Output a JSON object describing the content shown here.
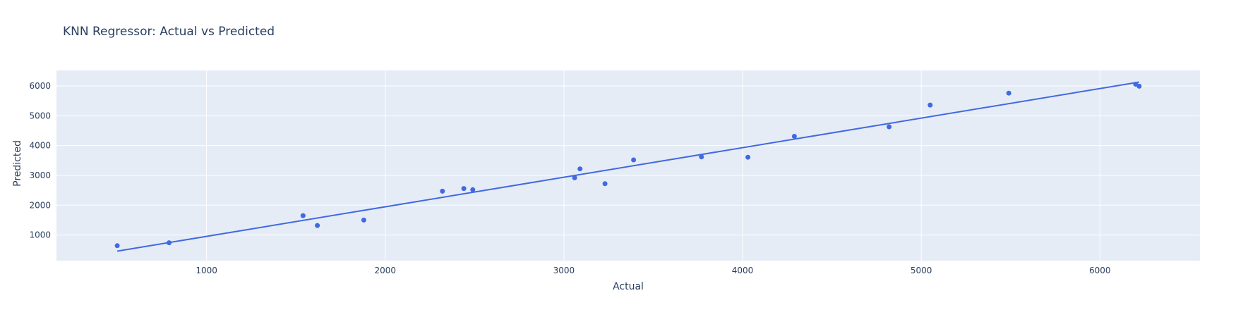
{
  "chart_data": {
    "type": "scatter",
    "title": "KNN Regressor: Actual vs Predicted",
    "xlabel": "Actual",
    "ylabel": "Predicted",
    "xlim": [
      160,
      6560
    ],
    "ylim": [
      140,
      6520
    ],
    "x_ticks": [
      1000,
      2000,
      3000,
      4000,
      5000,
      6000
    ],
    "y_ticks": [
      1000,
      2000,
      3000,
      4000,
      5000,
      6000
    ],
    "grid": true,
    "colors": {
      "marker": "#4169e1",
      "line": "#4169e1",
      "plot_bg": "#e5ecf6",
      "grid": "#ffffff",
      "text": "#2a3f5f"
    },
    "series": [
      {
        "mode": "markers",
        "points": [
          [
            500,
            640
          ],
          [
            790,
            740
          ],
          [
            1540,
            1650
          ],
          [
            1620,
            1320
          ],
          [
            1880,
            1500
          ],
          [
            2320,
            2470
          ],
          [
            2440,
            2560
          ],
          [
            2490,
            2520
          ],
          [
            3060,
            2920
          ],
          [
            3090,
            3220
          ],
          [
            3230,
            2720
          ],
          [
            3390,
            3520
          ],
          [
            3770,
            3620
          ],
          [
            4030,
            3610
          ],
          [
            4290,
            4310
          ],
          [
            4820,
            4630
          ],
          [
            5050,
            5360
          ],
          [
            5490,
            5760
          ],
          [
            6200,
            6060
          ],
          [
            6220,
            5990
          ]
        ]
      },
      {
        "mode": "lines",
        "points": [
          [
            500,
            460
          ],
          [
            6220,
            6130
          ]
        ]
      }
    ]
  }
}
